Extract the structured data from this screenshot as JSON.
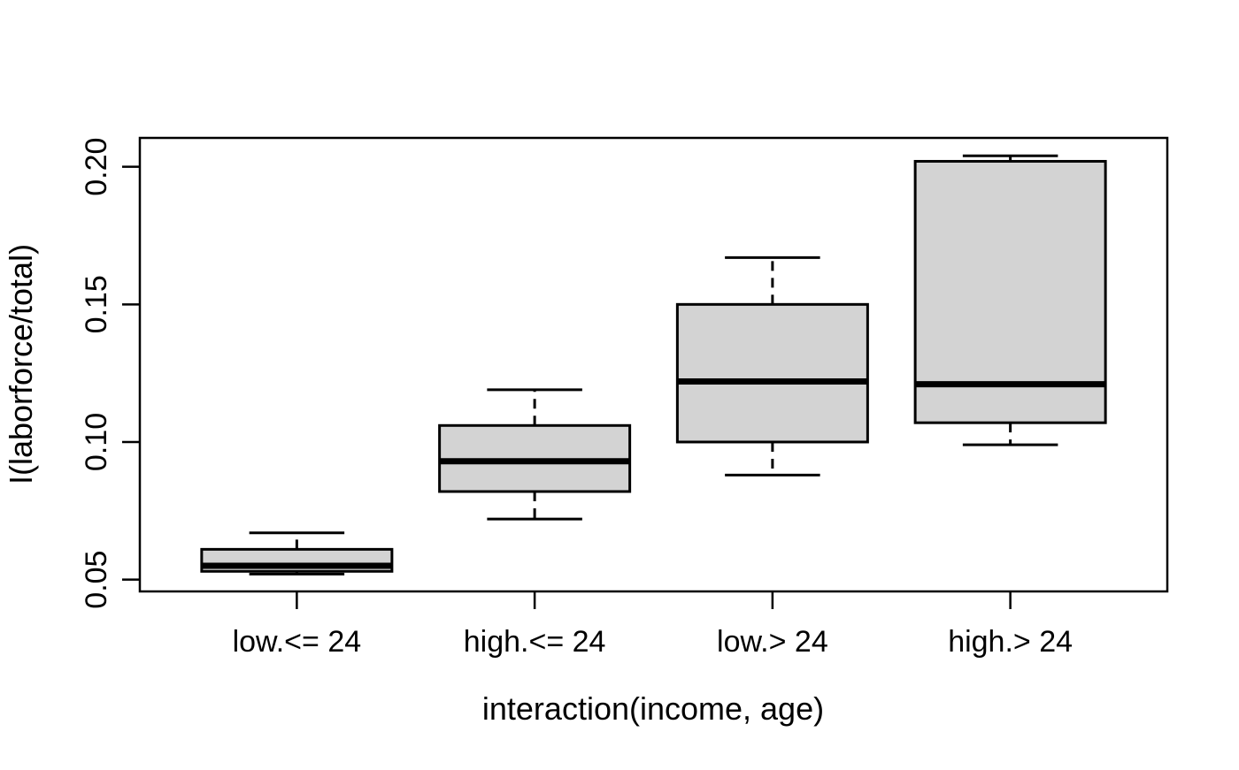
{
  "figure": {
    "background_color": "#ffffff",
    "kind": "R base-graphics boxplot"
  },
  "chart_data": {
    "type": "boxplot",
    "title": "",
    "xlabel": "interaction(income, age)",
    "ylabel": "I(laborforce/total)",
    "categories": [
      "low.<= 24",
      "high.<= 24",
      "low.> 24",
      "high.> 24"
    ],
    "boxes": [
      {
        "category": "low.<= 24",
        "whisker_low": 0.052,
        "q1": 0.053,
        "median": 0.055,
        "q3": 0.061,
        "whisker_high": 0.067
      },
      {
        "category": "high.<= 24",
        "whisker_low": 0.072,
        "q1": 0.082,
        "median": 0.093,
        "q3": 0.106,
        "whisker_high": 0.119
      },
      {
        "category": "low.> 24",
        "whisker_low": 0.088,
        "q1": 0.1,
        "median": 0.122,
        "q3": 0.15,
        "whisker_high": 0.167
      },
      {
        "category": "high.> 24",
        "whisker_low": 0.099,
        "q1": 0.107,
        "median": 0.121,
        "q3": 0.202,
        "whisker_high": 0.204
      }
    ],
    "y_ticks": [
      {
        "value": 0.05,
        "label": "0.05"
      },
      {
        "value": 0.1,
        "label": "0.10"
      },
      {
        "value": 0.15,
        "label": "0.15"
      },
      {
        "value": 0.2,
        "label": "0.20"
      }
    ],
    "ylim": [
      0.0457,
      0.2105
    ],
    "xlim": [
      0.34,
      4.66
    ],
    "box_positions": [
      1,
      2,
      3,
      4
    ],
    "grid": false,
    "legend": null,
    "styles": {
      "box_fill": "#d3d3d3",
      "line_color": "#000000",
      "background": "#ffffff",
      "whisker_style": "dashed",
      "staple_style": "solid"
    }
  }
}
